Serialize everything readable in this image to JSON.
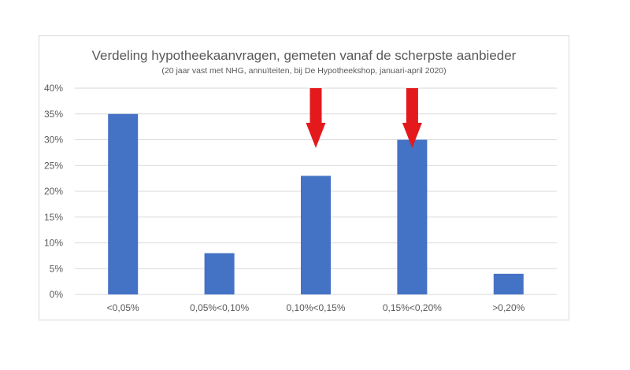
{
  "chart_data": {
    "type": "bar",
    "title": "Verdeling hypotheekaanvragen, gemeten vanaf de scherpste aanbieder",
    "subtitle": "(20 jaar vast met NHG, annuïteiten, bij De Hypotheekshop, januari-april 2020)",
    "categories": [
      "<0,05%",
      "0,05%<0,10%",
      "0,10%<0,15%",
      "0,15%<0,20%",
      ">0,20%"
    ],
    "values": [
      35,
      8,
      23,
      30,
      4
    ],
    "ylim": [
      0,
      40
    ],
    "yticks": [
      0,
      5,
      10,
      15,
      20,
      25,
      30,
      35,
      40
    ],
    "ytick_suffix": "%",
    "grid": true,
    "bar_color": "#4472c4",
    "arrow_color": "#e3191c",
    "arrow_categories": [
      2,
      3
    ]
  }
}
